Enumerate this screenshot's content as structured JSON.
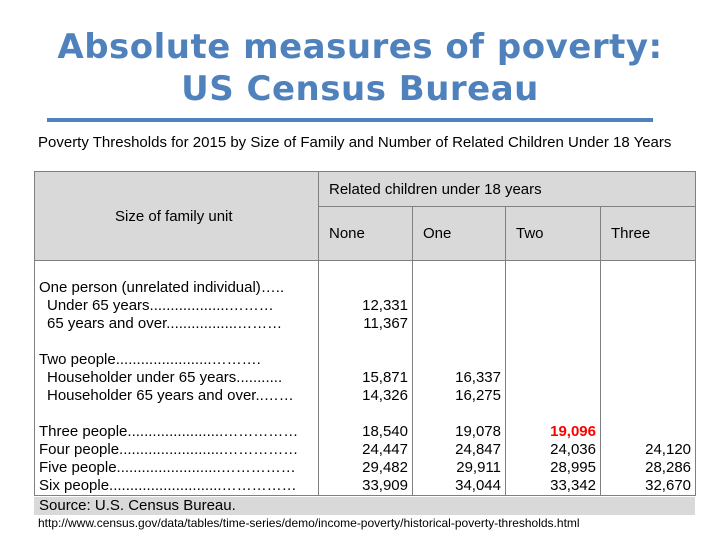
{
  "title": {
    "line1": "Absolute measures of poverty:",
    "line2": "US Census Bureau"
  },
  "subtitle": "Poverty Thresholds for 2015 by Size of Family and Number of Related Children Under 18 Years",
  "table": {
    "family_header": "Size of family unit",
    "children_header": "Related children under 18 years",
    "columns": [
      "None",
      "One",
      "Two",
      "Three"
    ],
    "rows": [
      {
        "label": "One person (unrelated individual)…..",
        "values": [
          "",
          "",
          "",
          ""
        ]
      },
      {
        "label": "Under 65 years...................………",
        "values": [
          "12,331",
          "",
          "",
          ""
        ]
      },
      {
        "label": "65 years and over.................………",
        "values": [
          "11,367",
          "",
          "",
          ""
        ]
      },
      {
        "label": "",
        "values": [
          "",
          "",
          "",
          ""
        ]
      },
      {
        "label": "Two people.......................……….",
        "values": [
          "",
          "",
          "",
          ""
        ]
      },
      {
        "label": "Householder under 65 years...........",
        "values": [
          "15,871",
          "16,337",
          "",
          ""
        ]
      },
      {
        "label": "Householder 65 years and over..……",
        "values": [
          "14,326",
          "16,275",
          "",
          ""
        ]
      },
      {
        "label": "",
        "values": [
          "",
          "",
          "",
          ""
        ]
      },
      {
        "label": "Three people.......................……………",
        "values": [
          "18,540",
          "19,078",
          "19,096",
          ""
        ]
      },
      {
        "label": "Four people.........................……………",
        "values": [
          "24,447",
          "24,847",
          "24,036",
          "24,120"
        ]
      },
      {
        "label": "Five people.........................……………",
        "values": [
          "29,482",
          "29,911",
          "28,995",
          "28,286"
        ]
      },
      {
        "label": "Six people...........................……………",
        "values": [
          "33,909",
          "34,044",
          "33,342",
          "32,670"
        ]
      }
    ],
    "highlighted_value": "19,096",
    "highlight_color": "#ff0000"
  },
  "source": "Source:  U.S. Census Bureau.",
  "url": "http://www.census.gov/data/tables/time-series/demo/income-poverty/historical-poverty-thresholds.html",
  "colors": {
    "title": "#4f81bd",
    "header_bg": "#d9d9d9"
  }
}
